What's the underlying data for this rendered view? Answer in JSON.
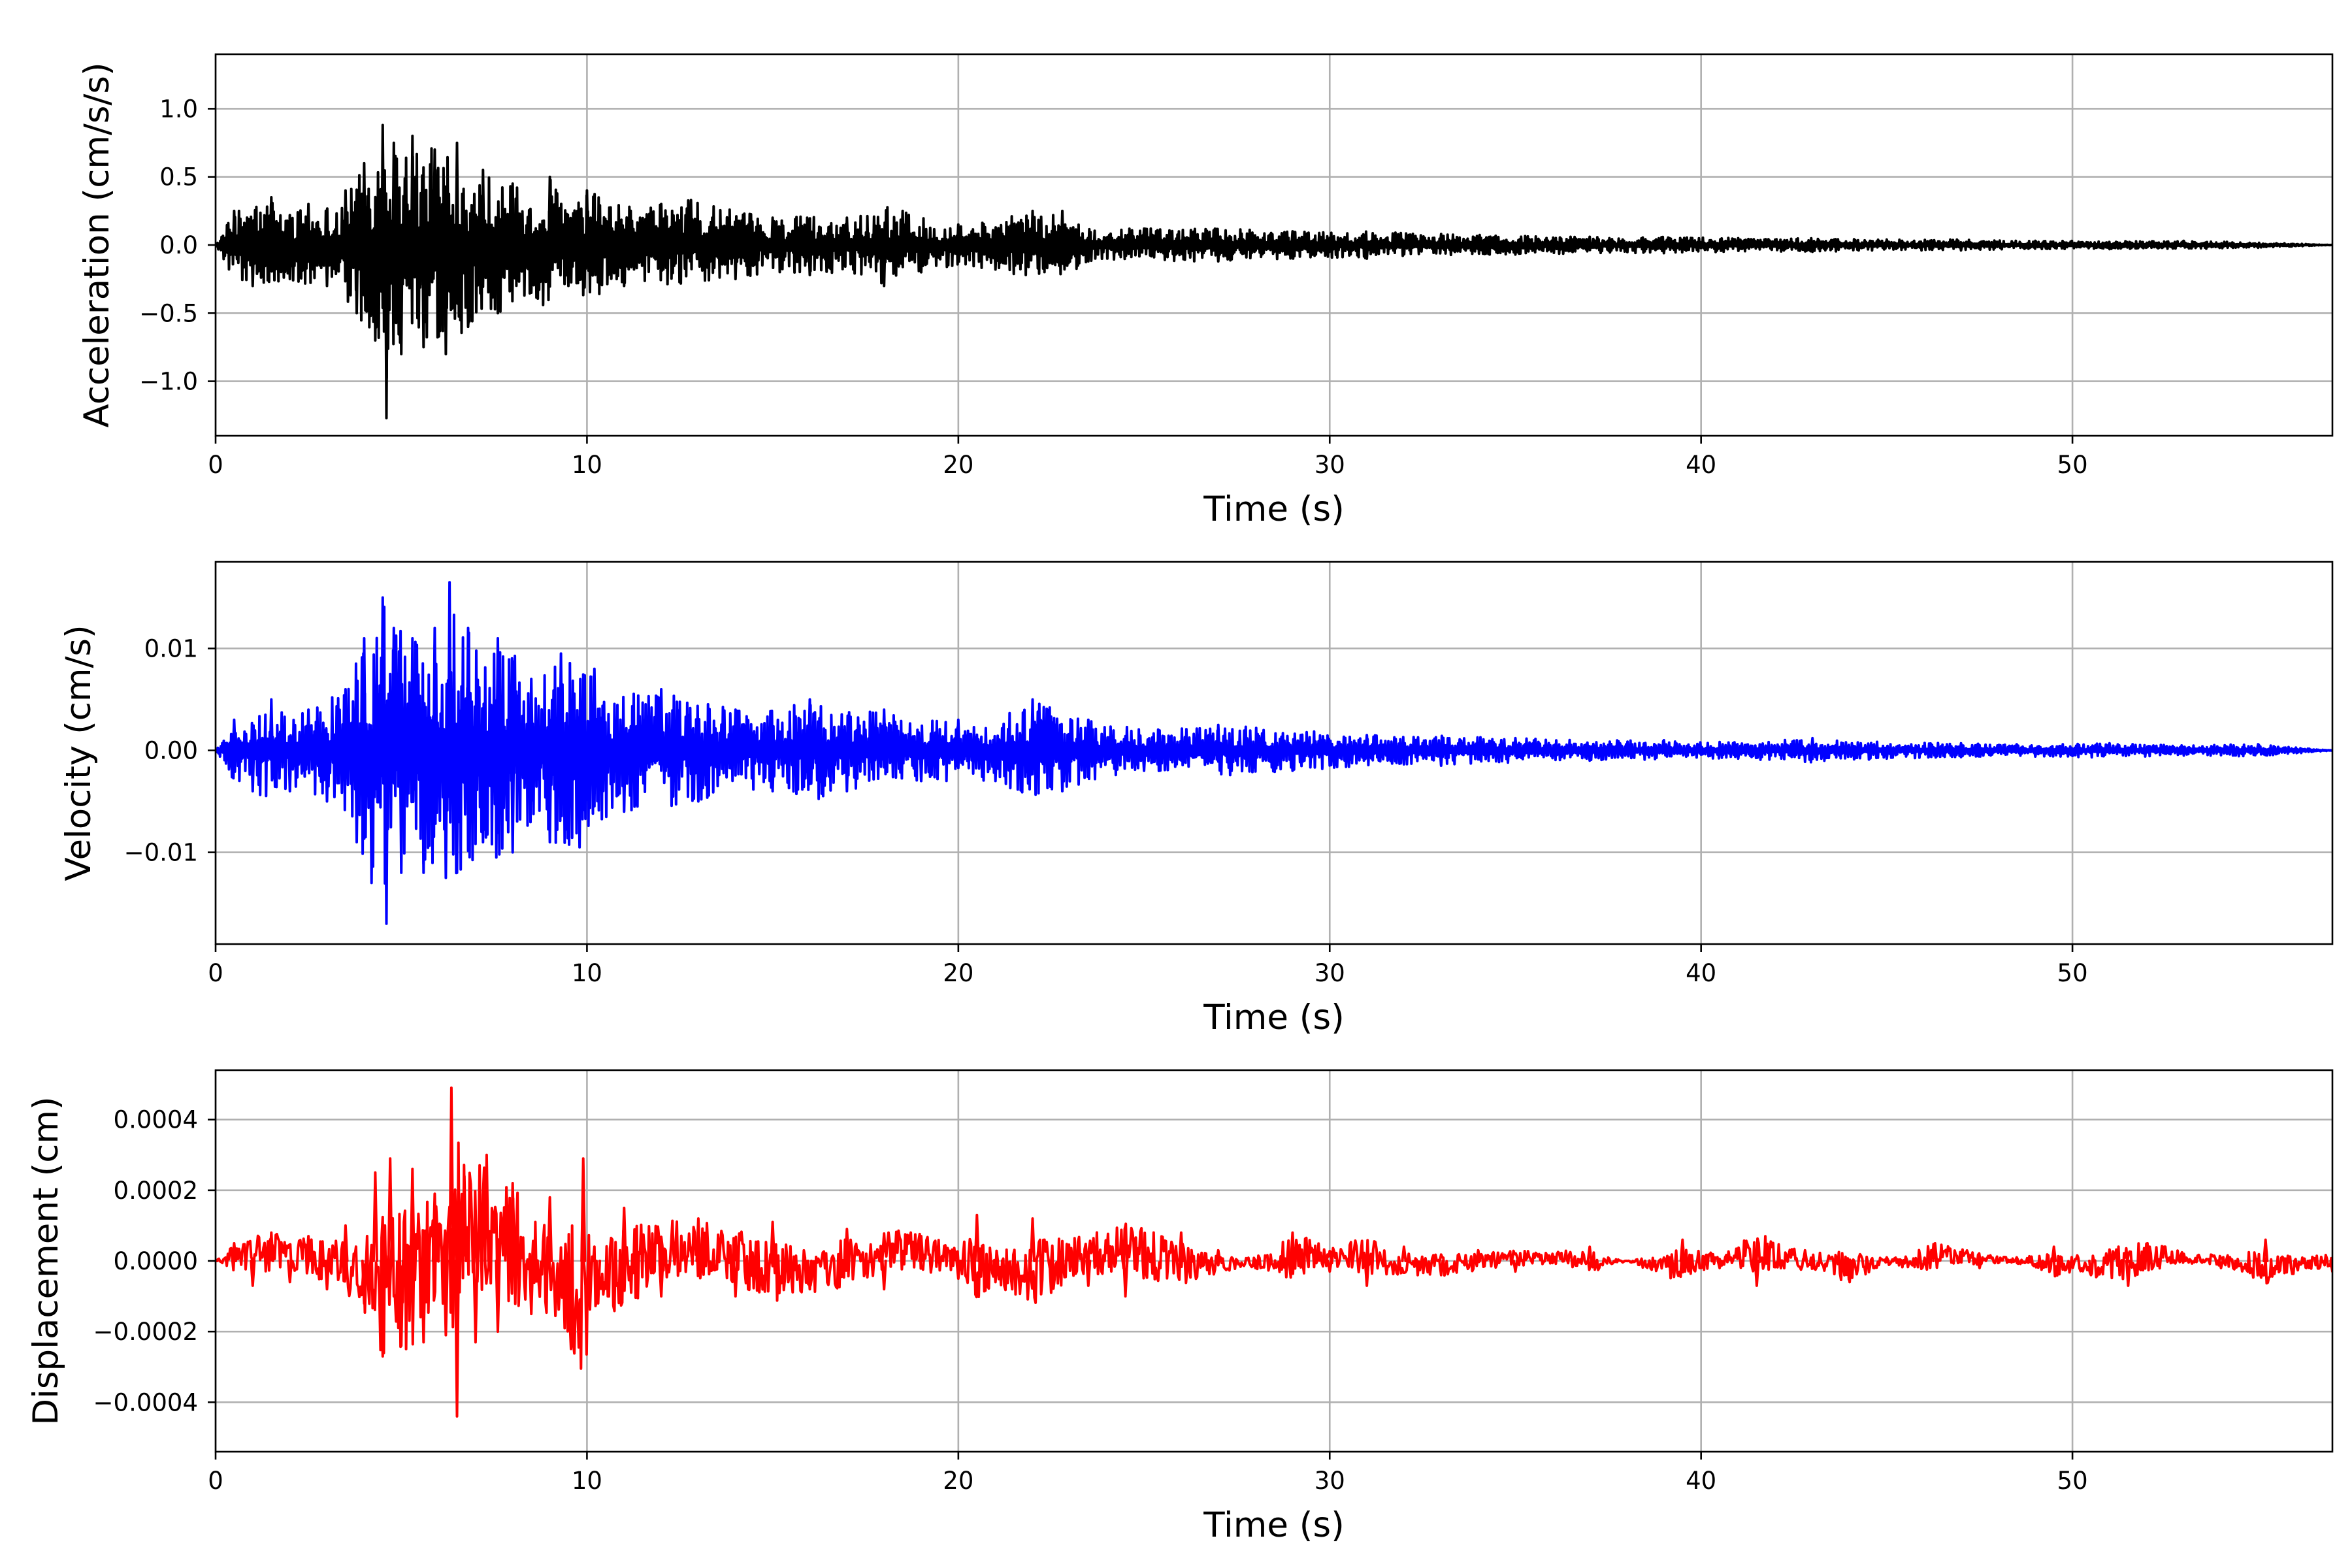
{
  "chart_data": [
    {
      "type": "line",
      "title": "",
      "xlabel": "Time (s)",
      "ylabel": "Acceleration (cm/s/s)",
      "xlim": [
        0,
        57
      ],
      "ylim": [
        -1.4,
        1.4
      ],
      "x_ticks": [
        0,
        10,
        20,
        30,
        40,
        50
      ],
      "x_tick_labels": [
        "0",
        "10",
        "20",
        "30",
        "40",
        "50"
      ],
      "y_ticks": [
        -1.0,
        -0.5,
        0.0,
        0.5,
        1.0
      ],
      "y_tick_labels": [
        "−1.0",
        "−0.5",
        "0.0",
        "0.5",
        "1.0"
      ],
      "grid": true,
      "legend": "none",
      "series": [
        {
          "color": "#000000",
          "x": [
            0,
            0.5,
            1,
            1.5,
            2,
            2.5,
            3,
            3.5,
            3.8,
            4.0,
            4.3,
            4.5,
            4.6,
            4.8,
            5.0,
            5.3,
            5.6,
            5.9,
            6.2,
            6.5,
            6.8,
            7.2,
            7.6,
            8.0,
            8.5,
            9.0,
            9.5,
            10,
            11,
            12,
            12.8,
            14,
            15,
            16,
            17,
            18,
            18.5,
            19,
            20,
            21,
            22,
            22.8,
            23.5,
            25,
            27,
            29,
            31,
            33,
            35,
            37,
            39,
            41,
            43,
            45,
            47,
            49,
            51,
            53,
            55,
            57
          ],
          "y": [
            0.0,
            0.25,
            -0.3,
            0.35,
            -0.25,
            0.3,
            -0.3,
            0.4,
            -0.5,
            0.6,
            -0.7,
            0.88,
            -1.27,
            0.75,
            -0.8,
            0.8,
            -0.75,
            0.7,
            -0.8,
            0.75,
            -0.6,
            0.55,
            -0.5,
            0.45,
            -0.35,
            0.5,
            -0.3,
            0.4,
            -0.3,
            0.3,
            0.33,
            -0.25,
            0.2,
            -0.22,
            0.2,
            -0.3,
            0.25,
            -0.2,
            0.15,
            -0.18,
            0.25,
            0.25,
            -0.12,
            0.12,
            -0.12,
            0.1,
            -0.1,
            0.08,
            -0.07,
            0.06,
            -0.06,
            0.05,
            -0.05,
            0.04,
            -0.04,
            0.03,
            -0.03,
            0.03,
            -0.02,
            0.0
          ]
        }
      ]
    },
    {
      "type": "line",
      "title": "",
      "xlabel": "Time (s)",
      "ylabel": "Velocity (cm/s)",
      "xlim": [
        0,
        57
      ],
      "ylim": [
        -0.019,
        0.0185
      ],
      "x_ticks": [
        0,
        10,
        20,
        30,
        40,
        50
      ],
      "x_tick_labels": [
        "0",
        "10",
        "20",
        "30",
        "40",
        "50"
      ],
      "y_ticks": [
        -0.01,
        0.0,
        0.01
      ],
      "y_tick_labels": [
        "−0.01",
        "0.00",
        "0.01"
      ],
      "grid": true,
      "legend": "none",
      "series": [
        {
          "color": "#0000ff",
          "x": [
            0,
            0.5,
            1,
            1.5,
            2,
            2.5,
            3,
            3.5,
            3.8,
            4.0,
            4.2,
            4.5,
            4.6,
            4.8,
            5.0,
            5.3,
            5.6,
            5.9,
            6.2,
            6.3,
            6.5,
            6.8,
            7.2,
            7.6,
            8.0,
            8.5,
            9.0,
            9.3,
            9.8,
            10.2,
            11,
            12,
            13,
            14,
            15,
            16,
            17,
            18,
            19,
            20,
            21,
            22,
            22.8,
            23.5,
            25,
            27,
            29,
            31,
            33,
            35,
            37,
            39,
            41,
            43,
            45,
            47,
            49,
            51,
            53,
            55,
            57
          ],
          "y": [
            0.0,
            0.003,
            -0.004,
            0.005,
            -0.004,
            0.004,
            -0.005,
            0.006,
            -0.009,
            0.011,
            -0.013,
            0.015,
            -0.017,
            0.012,
            -0.012,
            0.011,
            -0.012,
            0.012,
            -0.0125,
            0.0165,
            -0.012,
            0.012,
            -0.009,
            0.011,
            -0.01,
            0.007,
            -0.009,
            0.0095,
            -0.0095,
            0.008,
            -0.006,
            0.006,
            -0.005,
            0.004,
            -0.004,
            0.005,
            -0.004,
            0.004,
            -0.003,
            0.003,
            -0.003,
            0.005,
            -0.004,
            0.003,
            -0.002,
            0.0025,
            -0.002,
            0.0015,
            -0.0015,
            0.0012,
            -0.001,
            0.001,
            -0.0008,
            0.0012,
            -0.0008,
            0.0007,
            -0.0006,
            0.0007,
            -0.0005,
            0.0006,
            0.0
          ]
        }
      ]
    },
    {
      "type": "line",
      "title": "",
      "xlabel": "Time (s)",
      "ylabel": "Displacement (cm)",
      "xlim": [
        0,
        57
      ],
      "ylim": [
        -0.00054,
        0.00054
      ],
      "x_ticks": [
        0,
        10,
        20,
        30,
        40,
        50
      ],
      "x_tick_labels": [
        "0",
        "10",
        "20",
        "30",
        "40",
        "50"
      ],
      "y_ticks": [
        -0.0004,
        -0.0002,
        0.0,
        0.0002,
        0.0004
      ],
      "y_tick_labels": [
        "−0.0004",
        "−0.0002",
        "0.0000",
        "0.0002",
        "0.0004"
      ],
      "grid": true,
      "legend": "none",
      "series": [
        {
          "color": "#ff0000",
          "x": [
            0,
            0.5,
            1,
            1.5,
            2,
            2.5,
            3,
            3.5,
            4.0,
            4.3,
            4.5,
            4.7,
            5.0,
            5.3,
            5.6,
            5.9,
            6.2,
            6.35,
            6.5,
            6.7,
            7.0,
            7.3,
            7.6,
            8.0,
            8.5,
            9.0,
            9.4,
            9.9,
            10.3,
            11,
            12,
            13,
            14,
            15,
            16,
            17,
            18,
            19,
            20,
            20.5,
            21,
            22,
            22.5,
            23.5,
            24.5,
            26,
            27,
            28,
            29,
            30,
            31,
            32,
            33,
            34,
            35,
            36,
            37,
            38,
            39.5,
            40.5,
            41.5,
            42.8,
            44,
            45,
            46.3,
            47.5,
            48.5,
            49.5,
            50.5,
            51.5,
            53,
            54,
            55.2,
            56.3,
            57
          ],
          "y": [
            0.0,
            5e-05,
            -7e-05,
            8e-05,
            -6e-05,
            7e-05,
            -8e-05,
            0.0001,
            -0.00012,
            0.00025,
            -0.00027,
            0.00029,
            -0.00024,
            0.00026,
            -0.00023,
            0.00019,
            -0.00021,
            0.00049,
            -0.00044,
            0.00024,
            -0.00023,
            0.0003,
            -0.0002,
            0.00022,
            -0.00015,
            0.00018,
            -0.00019,
            0.00029,
            -0.00012,
            0.00015,
            -0.0001,
            0.00012,
            -0.0001,
            0.00011,
            -8e-05,
            9e-05,
            -8e-05,
            7e-05,
            -5e-05,
            0.00013,
            -6e-05,
            0.00012,
            -9e-05,
            -7e-05,
            -0.0001,
            8e-05,
            3e-05,
            -2e-05,
            8e-05,
            -3e-05,
            -7e-05,
            4e-05,
            -4e-05,
            3e-05,
            -3e-05,
            2e-05,
            4e-05,
            0.0,
            6e-05,
            -2e-05,
            -7e-05,
            3e-05,
            -6e-05,
            1e-05,
            5e-05,
            -2e-05,
            1e-05,
            4e-05,
            -4e-05,
            -7e-05,
            2e-05,
            -2e-05,
            6e-05,
            -2e-05,
            -3e-05
          ]
        }
      ]
    }
  ]
}
